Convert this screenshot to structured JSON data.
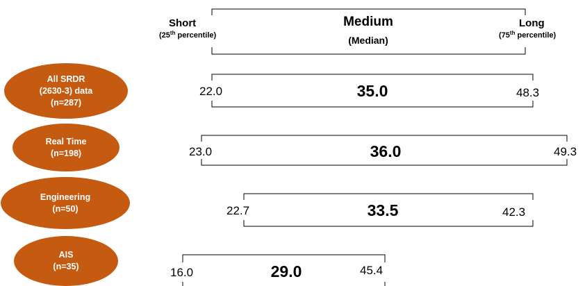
{
  "header": {
    "short_label": "Short",
    "short_sub_prefix": "(25",
    "short_sub_sup": "th",
    "short_sub_suffix": " percentile)",
    "medium_label": "Medium",
    "medium_sub": "(Median)",
    "long_label": "Long",
    "long_sub_prefix": "(75",
    "long_sub_sup": "th",
    "long_sub_suffix": " percentile)"
  },
  "rows": [
    {
      "label_lines": [
        "All SRDR",
        "(2630-3) data",
        "(n=287)"
      ],
      "short": "22.0",
      "median": "35.0",
      "long": "48.3"
    },
    {
      "label_lines": [
        "Real Time",
        "(n=198)"
      ],
      "short": "23.0",
      "median": "36.0",
      "long": "49.3"
    },
    {
      "label_lines": [
        "Engineering",
        "(n=50)"
      ],
      "short": "22.7",
      "median": "33.5",
      "long": "42.3"
    },
    {
      "label_lines": [
        "AIS",
        "(n=35)"
      ],
      "short": "16.0",
      "median": "29.0",
      "long": "45.4"
    }
  ],
  "colors": {
    "oval_fill": "#c55a11",
    "oval_text": "#ffffff",
    "bracket": "#000000"
  }
}
